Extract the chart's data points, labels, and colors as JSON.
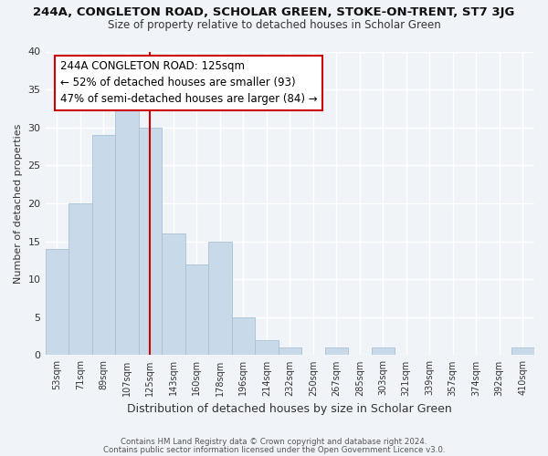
{
  "title": "244A, CONGLETON ROAD, SCHOLAR GREEN, STOKE-ON-TRENT, ST7 3JG",
  "subtitle": "Size of property relative to detached houses in Scholar Green",
  "xlabel": "Distribution of detached houses by size in Scholar Green",
  "ylabel": "Number of detached properties",
  "bin_labels": [
    "53sqm",
    "71sqm",
    "89sqm",
    "107sqm",
    "125sqm",
    "143sqm",
    "160sqm",
    "178sqm",
    "196sqm",
    "214sqm",
    "232sqm",
    "250sqm",
    "267sqm",
    "285sqm",
    "303sqm",
    "321sqm",
    "339sqm",
    "357sqm",
    "374sqm",
    "392sqm",
    "410sqm"
  ],
  "bar_heights": [
    14,
    20,
    29,
    33,
    30,
    16,
    12,
    15,
    5,
    2,
    1,
    0,
    1,
    0,
    1,
    0,
    0,
    0,
    0,
    0,
    1
  ],
  "bar_color": "#c8d9ea",
  "bar_edge_color": "#a8c0d6",
  "vline_x": 4,
  "vline_color": "#cc0000",
  "annotation_line1": "244A CONGLETON ROAD: 125sqm",
  "annotation_line2": "← 52% of detached houses are smaller (93)",
  "annotation_line3": "47% of semi-detached houses are larger (84) →",
  "annotation_box_edge": "#cc0000",
  "ylim": [
    0,
    40
  ],
  "yticks": [
    0,
    5,
    10,
    15,
    20,
    25,
    30,
    35,
    40
  ],
  "footnote1": "Contains HM Land Registry data © Crown copyright and database right 2024.",
  "footnote2": "Contains public sector information licensed under the Open Government Licence v3.0.",
  "bg_color": "#f0f4f8",
  "plot_bg_color": "#f0f4f8",
  "grid_color": "#dce8f0"
}
